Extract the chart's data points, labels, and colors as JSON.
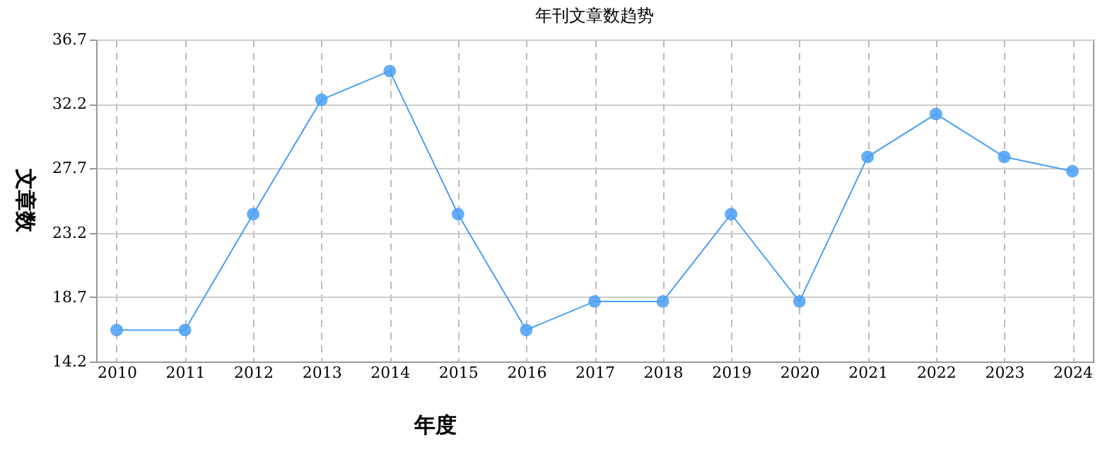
{
  "chart_data": {
    "type": "line",
    "title": "年刊文章数趋势",
    "xlabel": "年度",
    "ylabel": "文章数",
    "categories": [
      "2010",
      "2011",
      "2012",
      "2013",
      "2014",
      "2015",
      "2016",
      "2017",
      "2018",
      "2019",
      "2020",
      "2021",
      "2022",
      "2023",
      "2024"
    ],
    "series": [
      {
        "color": "#4a9ff5",
        "values": [
          16.4,
          16.4,
          24.5,
          32.5,
          34.5,
          24.5,
          16.4,
          18.4,
          18.4,
          24.5,
          18.4,
          28.5,
          31.5,
          28.5,
          27.5
        ]
      }
    ],
    "ylim": [
      14.2,
      36.7
    ],
    "yticks": [
      14.2,
      18.7,
      23.2,
      27.7,
      32.2,
      36.7
    ],
    "grid": true,
    "marker": "circle",
    "line_style": "solid"
  }
}
